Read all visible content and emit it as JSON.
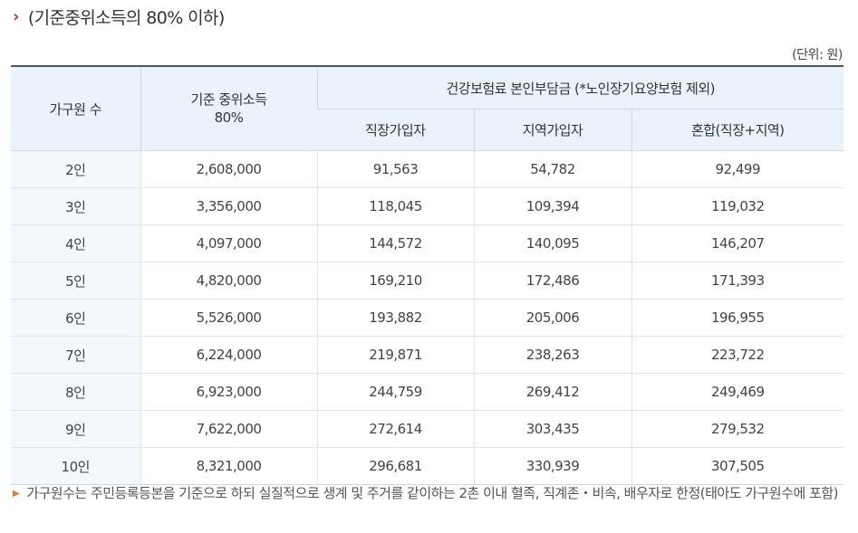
{
  "heading": {
    "chevron_icon": "chevron-right-icon",
    "text": "(기준중위소득의 80% 이하)"
  },
  "unit_text": "(단위: 원)",
  "table": {
    "header": {
      "household": "가구원 수",
      "median_income": "기준 중위소득\n80%",
      "premium_group": "건강보험료 본인부담금 (*노인장기요양보험 제외)",
      "employee": "직장가입자",
      "regional": "지역가입자",
      "mixed": "혼합(직장+지역)"
    },
    "rows": [
      [
        "2인",
        "2,608,000",
        "91,563",
        "54,782",
        "92,499"
      ],
      [
        "3인",
        "3,356,000",
        "118,045",
        "109,394",
        "119,032"
      ],
      [
        "4인",
        "4,097,000",
        "144,572",
        "140,095",
        "146,207"
      ],
      [
        "5인",
        "4,820,000",
        "169,210",
        "172,486",
        "171,393"
      ],
      [
        "6인",
        "5,526,000",
        "193,882",
        "205,006",
        "196,955"
      ],
      [
        "7인",
        "6,224,000",
        "219,871",
        "238,263",
        "223,722"
      ],
      [
        "8인",
        "6,923,000",
        "244,759",
        "269,412",
        "249,469"
      ],
      [
        "9인",
        "7,622,000",
        "272,614",
        "303,435",
        "279,532"
      ],
      [
        "10인",
        "8,321,000",
        "296,681",
        "330,939",
        "307,505"
      ]
    ]
  },
  "note": {
    "bullet_icon": "triangle-right-icon",
    "text": "가구원수는 주민등록등본을 기준으로 하되 실질적으로 생계 및 주거를 같이하는 2촌 이내 혈족, 직계존・비속, 배우자로 한정(태아도 가구원수에 포함)"
  },
  "colors": {
    "accent": "#d6246e",
    "header_bg": "#eaf3fb",
    "bullet": "#e07a2e"
  }
}
